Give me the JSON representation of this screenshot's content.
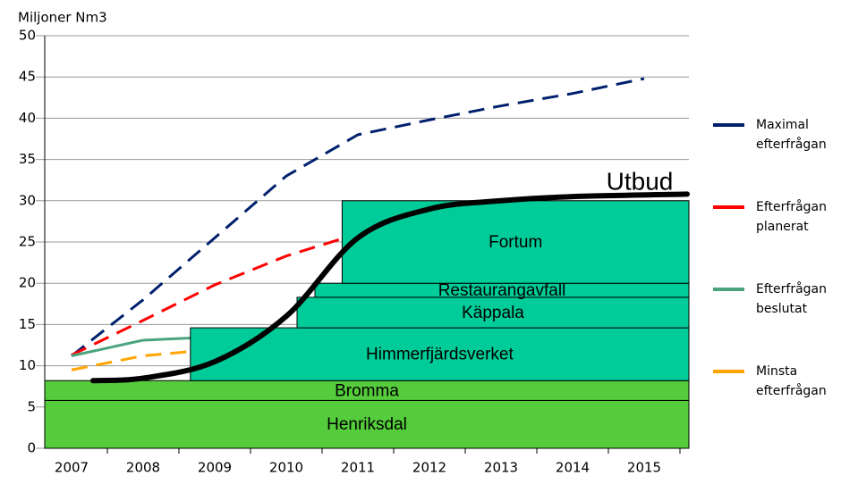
{
  "chart_data": {
    "type": "line",
    "y_label": "Miljoner Nm3",
    "ylim": [
      0,
      50
    ],
    "yticks": [
      0,
      5,
      10,
      15,
      20,
      25,
      30,
      35,
      40,
      45,
      50
    ],
    "grid": true,
    "xlim": [
      2006.625,
      2015.625
    ],
    "xticks": [
      2007,
      2008,
      2009,
      2010,
      2011,
      2012,
      2013,
      2014,
      2015
    ],
    "blocks": [
      {
        "name": "Henriksdal",
        "x0": 2006.625,
        "value": 5.8,
        "color": "#55cc3c"
      },
      {
        "name": "Bromma",
        "x0": 2006.625,
        "value": 2.4,
        "color": "#55cc3c"
      },
      {
        "name": "Himmerfjärdsverket",
        "x0": 2008.66,
        "value": 6.4,
        "color": "#00cc99"
      },
      {
        "name": "Käppala",
        "x0": 2010.15,
        "value": 3.7,
        "color": "#00cc99"
      },
      {
        "name": "Restaurangavfall",
        "x0": 2010.4,
        "value": 1.7,
        "color": "#00cc99"
      },
      {
        "name": "Fortum",
        "x0": 2010.78,
        "value": 10,
        "color": "#00cc99"
      }
    ],
    "series": [
      {
        "name": "Maximal efterfrågan",
        "color": "#00206e",
        "dash": true,
        "x": [
          2007,
          2008,
          2009,
          2010,
          2011,
          2012,
          2013,
          2014,
          2015
        ],
        "values": [
          11.2,
          18,
          25.5,
          33,
          38,
          39.8,
          41.5,
          43,
          44.8
        ]
      },
      {
        "name": "Efterfrågan planerat",
        "color": "#ff0000",
        "dash": true,
        "x": [
          2007,
          2008,
          2009,
          2010,
          2011
        ],
        "values": [
          11.3,
          15.5,
          19.8,
          23.3,
          26
        ]
      },
      {
        "name": "Efterfrågan beslutat",
        "color": "#4aa37f",
        "dash": false,
        "x": [
          2007,
          2008,
          2009
        ],
        "values": [
          11.2,
          13.1,
          13.5
        ]
      },
      {
        "name": "Minsta efterfrågan",
        "color": "#ffa500",
        "dash": true,
        "x": [
          2007,
          2008,
          2009
        ],
        "values": [
          9.5,
          11.2,
          12
        ]
      }
    ],
    "supply": {
      "name": "Utbud",
      "color": "#000000",
      "x": [
        2007.3,
        2008,
        2009,
        2010,
        2011,
        2012,
        2013,
        2014,
        2015.6
      ],
      "values": [
        8.2,
        8.5,
        10.5,
        16,
        25.5,
        29,
        30,
        30.5,
        30.8
      ]
    }
  }
}
